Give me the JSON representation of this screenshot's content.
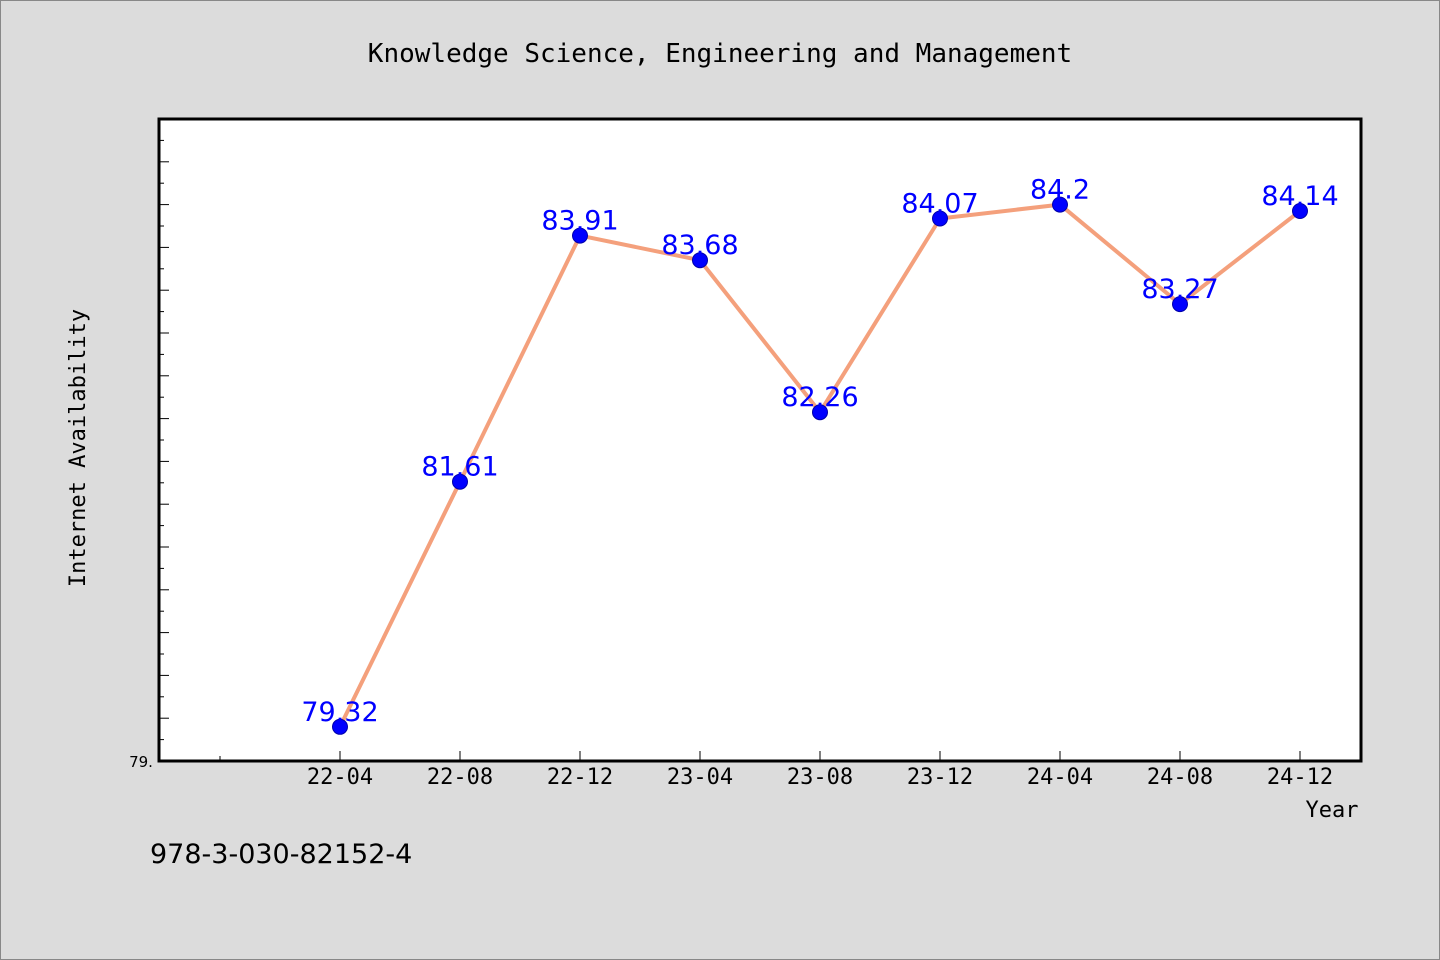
{
  "chart_data": {
    "type": "line",
    "title": "Knowledge Science, Engineering and Management",
    "xlabel": "Year",
    "ylabel": "Internet Availability",
    "categories": [
      "22-04",
      "22-08",
      "22-12",
      "23-04",
      "23-08",
      "23-12",
      "24-04",
      "24-08",
      "24-12"
    ],
    "series": [
      {
        "values": [
          79.32,
          81.61,
          83.91,
          83.68,
          82.26,
          84.07,
          84.2,
          83.27,
          84.14
        ],
        "labels": [
          "79.32",
          "81.61",
          "83.91",
          "83.68",
          "82.26",
          "84.07",
          "84.2",
          "83.27",
          "84.14"
        ]
      }
    ],
    "ylim": [
      79.0,
      85.0
    ],
    "y_tick_labels": [
      "79."
    ],
    "grid": false,
    "legend": "none",
    "colors": {
      "line": "#f4a07c",
      "marker": "#0000ff",
      "marker_edge": "#0000aa",
      "data_label": "#0000ff",
      "background": "#dcdcdc",
      "plot_area": "#ffffff"
    }
  },
  "footer": {
    "isbn": "978-3-030-82152-4"
  }
}
